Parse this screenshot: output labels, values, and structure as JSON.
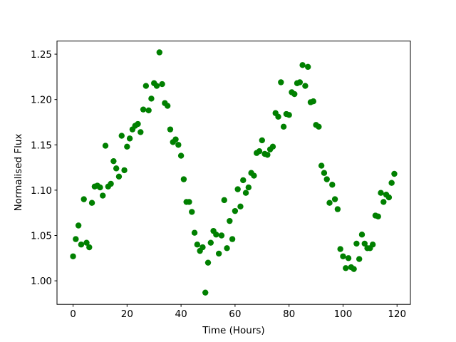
{
  "chart_data": {
    "type": "scatter",
    "x_label": "Time (Hours)",
    "y_label": "Normalised Flux",
    "color": "#008000",
    "x": [
      0,
      1,
      2,
      3,
      4,
      5,
      6,
      7,
      8,
      9,
      10,
      11,
      12,
      13,
      14,
      15,
      16,
      17,
      18,
      19,
      20,
      21,
      22,
      23,
      24,
      25,
      26,
      27,
      28,
      29,
      30,
      31,
      32,
      33,
      34,
      35,
      36,
      37,
      38,
      39,
      40,
      41,
      42,
      43,
      44,
      45,
      46,
      47,
      48,
      49,
      50,
      51,
      52,
      53,
      54,
      55,
      56,
      57,
      58,
      59,
      60,
      61,
      62,
      63,
      64,
      65,
      66,
      67,
      68,
      69,
      70,
      71,
      72,
      73,
      74,
      75,
      76,
      77,
      78,
      79,
      80,
      81,
      82,
      83,
      84,
      85,
      86,
      87,
      88,
      89,
      90,
      91,
      92,
      93,
      94,
      95,
      96,
      97,
      98,
      99,
      100,
      101,
      102,
      103,
      104,
      105,
      106,
      107,
      108,
      109,
      110,
      111,
      112,
      113,
      114,
      115,
      116,
      117,
      118,
      119
    ],
    "values": [
      1.027,
      1.046,
      1.061,
      1.04,
      1.09,
      1.042,
      1.037,
      1.086,
      1.104,
      1.105,
      1.103,
      1.094,
      1.149,
      1.104,
      1.107,
      1.132,
      1.124,
      1.115,
      1.16,
      1.122,
      1.148,
      1.157,
      1.167,
      1.171,
      1.173,
      1.164,
      1.189,
      1.215,
      1.188,
      1.201,
      1.218,
      1.215,
      1.252,
      1.217,
      1.196,
      1.193,
      1.167,
      1.153,
      1.156,
      1.15,
      1.138,
      1.112,
      1.087,
      1.087,
      1.076,
      1.053,
      1.04,
      1.033,
      1.037,
      0.987,
      1.02,
      1.042,
      1.055,
      1.051,
      1.03,
      1.05,
      1.089,
      1.036,
      1.066,
      1.046,
      1.077,
      1.101,
      1.082,
      1.111,
      1.097,
      1.103,
      1.119,
      1.116,
      1.141,
      1.143,
      1.155,
      1.14,
      1.139,
      1.145,
      1.148,
      1.185,
      1.181,
      1.219,
      1.17,
      1.184,
      1.183,
      1.208,
      1.206,
      1.218,
      1.219,
      1.238,
      1.215,
      1.236,
      1.197,
      1.198,
      1.172,
      1.17,
      1.127,
      1.119,
      1.112,
      1.086,
      1.106,
      1.09,
      1.079,
      1.035,
      1.027,
      1.014,
      1.025,
      1.015,
      1.013,
      1.041,
      1.024,
      1.051,
      1.041,
      1.036,
      1.036,
      1.04,
      1.072,
      1.071,
      1.097,
      1.087,
      1.095,
      1.092,
      1.108,
      1.118
    ],
    "xlim": [
      -5.95,
      124.95
    ],
    "ylim": [
      0.974,
      1.2645
    ],
    "xticks": [
      0,
      20,
      40,
      60,
      80,
      100,
      120
    ],
    "yticks": [
      {
        "value": 1.0,
        "label": "1.00"
      },
      1.05,
      {
        "value": 1.1,
        "label": "1.10"
      },
      1.15,
      {
        "value": 1.2,
        "label": "1.20"
      },
      1.25
    ]
  }
}
